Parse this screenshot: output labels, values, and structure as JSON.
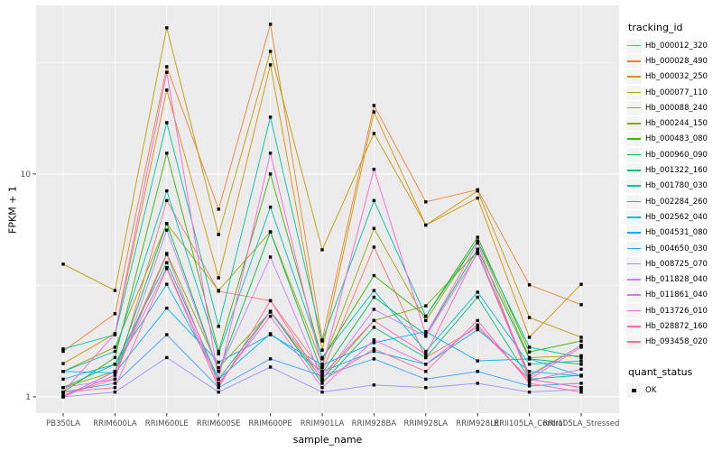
{
  "figure": {
    "background": "#FFFFFF",
    "panel_background": "#EBEBEB",
    "grid_color": "#FFFFFF",
    "axis_text_color": "#4D4D4D",
    "tick_color": "#333333",
    "point_color": "#000000"
  },
  "chart_data": {
    "type": "line",
    "title": "",
    "xlabel": "sample_name",
    "ylabel": "FPKM + 1",
    "y_scale": "log10",
    "ylim": [
      0.845,
      57.1
    ],
    "y_ticks": [
      1,
      10
    ],
    "y_minor_breaks": [
      3.162,
      31.623
    ],
    "grid": true,
    "legend_position": "right",
    "point_shape": "square",
    "categories": [
      "PB350LA",
      "RRIM600LA",
      "RRIM600LE",
      "RRIM600SE",
      "RRIM600PE",
      "RRIM901LA",
      "RRIM928BA",
      "RRIM928LA",
      "RRIM928LE",
      "RRII105LA_Control",
      "RRII105LA_Stressed"
    ],
    "series": [
      {
        "name": "Hb_000012_320",
        "color": "#F8766D",
        "values": [
          1.02,
          1.2,
          7.6,
          2.98,
          2.7,
          1.3,
          4.7,
          1.5,
          2.05,
          1.2,
          1.1
        ]
      },
      {
        "name": "Hb_000028_490",
        "color": "#EA8331",
        "values": [
          1.6,
          2.36,
          30.3,
          6.95,
          47.0,
          1.8,
          20.3,
          7.5,
          8.5,
          3.18,
          2.59
        ]
      },
      {
        "name": "Hb_000032_250",
        "color": "#D89000",
        "values": [
          1.41,
          1.92,
          23.8,
          3.42,
          30.9,
          1.62,
          19.0,
          5.9,
          7.8,
          1.85,
          3.2
        ]
      },
      {
        "name": "Hb_000077_110",
        "color": "#C09B00",
        "values": [
          3.94,
          3.0,
          45.3,
          5.35,
          35.5,
          4.57,
          15.2,
          5.9,
          8.4,
          2.27,
          1.85
        ]
      },
      {
        "name": "Hb_000088_240",
        "color": "#A3A500",
        "values": [
          1.3,
          1.67,
          5.98,
          3.0,
          5.5,
          1.4,
          5.7,
          2.2,
          5.0,
          1.5,
          1.53
        ]
      },
      {
        "name": "Hb_000244_150",
        "color": "#7CAE00",
        "values": [
          1.1,
          1.3,
          4.4,
          1.35,
          2.4,
          1.2,
          2.2,
          2.56,
          4.5,
          1.25,
          1.7
        ]
      },
      {
        "name": "Hb_000483_080",
        "color": "#39B600",
        "values": [
          1.05,
          1.5,
          12.4,
          1.6,
          10.0,
          1.48,
          3.5,
          2.3,
          5.2,
          1.59,
          1.78
        ]
      },
      {
        "name": "Hb_000960_090",
        "color": "#00BB4E",
        "values": [
          1.0,
          1.3,
          6.0,
          1.3,
          5.5,
          1.28,
          2.8,
          1.9,
          4.6,
          1.48,
          1.4
        ]
      },
      {
        "name": "Hb_001322_160",
        "color": "#00BF7D",
        "values": [
          1.1,
          1.4,
          4.0,
          1.2,
          2.42,
          1.15,
          2.05,
          1.5,
          2.8,
          1.2,
          1.25
        ]
      },
      {
        "name": "Hb_001780_030",
        "color": "#00C1A3",
        "values": [
          1.64,
          1.9,
          17.0,
          2.07,
          18.0,
          1.78,
          7.6,
          2.3,
          5.0,
          1.67,
          1.5
        ]
      },
      {
        "name": "Hb_002284_260",
        "color": "#00BFC4",
        "values": [
          1.3,
          1.6,
          8.4,
          1.56,
          7.1,
          1.5,
          3.0,
          1.6,
          2.95,
          1.4,
          1.45
        ]
      },
      {
        "name": "Hb_002562_040",
        "color": "#00BAE0",
        "values": [
          1.2,
          1.4,
          3.2,
          1.2,
          1.92,
          1.3,
          1.6,
          1.4,
          2.0,
          1.3,
          1.24
        ]
      },
      {
        "name": "Hb_004531_080",
        "color": "#00B0F6",
        "values": [
          1.3,
          1.28,
          2.5,
          1.43,
          1.9,
          1.39,
          1.75,
          1.96,
          1.45,
          1.48,
          1.24
        ]
      },
      {
        "name": "Hb_004650_030",
        "color": "#35A2FF",
        "values": [
          1.05,
          1.15,
          1.9,
          1.1,
          1.48,
          1.24,
          1.48,
          1.2,
          1.3,
          1.12,
          1.15
        ]
      },
      {
        "name": "Hb_008725_070",
        "color": "#9590FF",
        "values": [
          1.0,
          1.05,
          1.5,
          1.05,
          1.36,
          1.05,
          1.13,
          1.1,
          1.15,
          1.05,
          1.08
        ]
      },
      {
        "name": "Hb_011828_040",
        "color": "#C77CFF",
        "values": [
          1.1,
          1.2,
          5.6,
          1.3,
          4.24,
          1.2,
          2.47,
          1.87,
          4.4,
          1.23,
          1.7
        ]
      },
      {
        "name": "Hb_011861_040",
        "color": "#E76BF3",
        "values": [
          1.0,
          1.3,
          3.8,
          1.15,
          2.3,
          1.1,
          1.8,
          1.4,
          2.1,
          1.18,
          1.33
        ]
      },
      {
        "name": "Hb_013726_010",
        "color": "#FA62DB",
        "values": [
          1.05,
          1.92,
          28.6,
          1.2,
          12.4,
          1.35,
          10.5,
          1.9,
          4.9,
          1.2,
          1.67
        ]
      },
      {
        "name": "Hb_028872_160",
        "color": "#FF62BC",
        "values": [
          1.0,
          1.25,
          4.36,
          1.13,
          2.42,
          1.25,
          2.2,
          1.55,
          4.5,
          1.2,
          1.1
        ]
      },
      {
        "name": "Hb_093458_020",
        "color": "#FF6A98",
        "values": [
          1.05,
          1.1,
          3.76,
          1.1,
          2.7,
          1.18,
          1.64,
          1.3,
          2.2,
          1.15,
          1.05
        ]
      }
    ],
    "legend": {
      "color_title": "tracking_id",
      "shape_title": "quant_status",
      "shape_items": [
        {
          "label": "OK"
        }
      ]
    }
  }
}
